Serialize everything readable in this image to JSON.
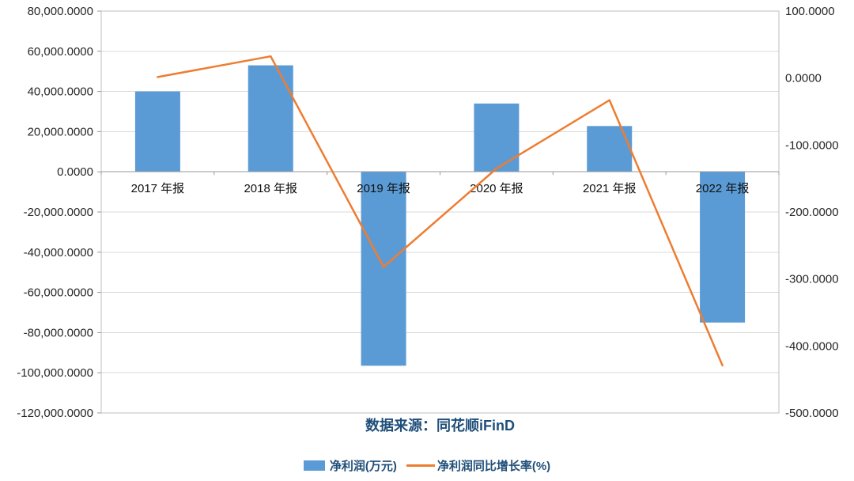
{
  "colors": {
    "bar": "#5B9BD5",
    "line": "#ED7D31",
    "grid": "#D9D9D9",
    "border": "#BFBFBF",
    "axis_line": "#9A9A9A",
    "tick_text": "#262626",
    "category_text": "#111111",
    "title_text": "#1F4E79"
  },
  "chart_data": {
    "type": "bar+line",
    "categories": [
      "2017 年报",
      "2018 年报",
      "2019 年报",
      "2020 年报",
      "2021 年报",
      "2022 年报"
    ],
    "series": [
      {
        "name": "净利润(万元)",
        "type": "bar",
        "axis": "left",
        "values": [
          40000,
          53000,
          -96500,
          34000,
          22800,
          -75000
        ]
      },
      {
        "name": "净利润同比增长率(%)",
        "type": "line",
        "axis": "right",
        "values": [
          1.5,
          32.5,
          -282,
          -135,
          -33,
          -429
        ]
      }
    ],
    "left_axis": {
      "min": -120000,
      "max": 80000,
      "step": 20000,
      "ticks": [
        "80,000.0000",
        "60,000.0000",
        "40,000.0000",
        "20,000.0000",
        "0.0000",
        "-20,000.0000",
        "-40,000.0000",
        "-60,000.0000",
        "-80,000.0000",
        "-100,000.0000",
        "-120,000.0000"
      ]
    },
    "right_axis": {
      "min": -500,
      "max": 100,
      "step": 100,
      "ticks": [
        "100.0000",
        "0.0000",
        "-100.0000",
        "-200.0000",
        "-300.0000",
        "-400.0000",
        "-500.0000"
      ]
    },
    "grid": "horizontal",
    "legend_position": "bottom",
    "source_note": "数据来源：同花顺iFinD"
  }
}
